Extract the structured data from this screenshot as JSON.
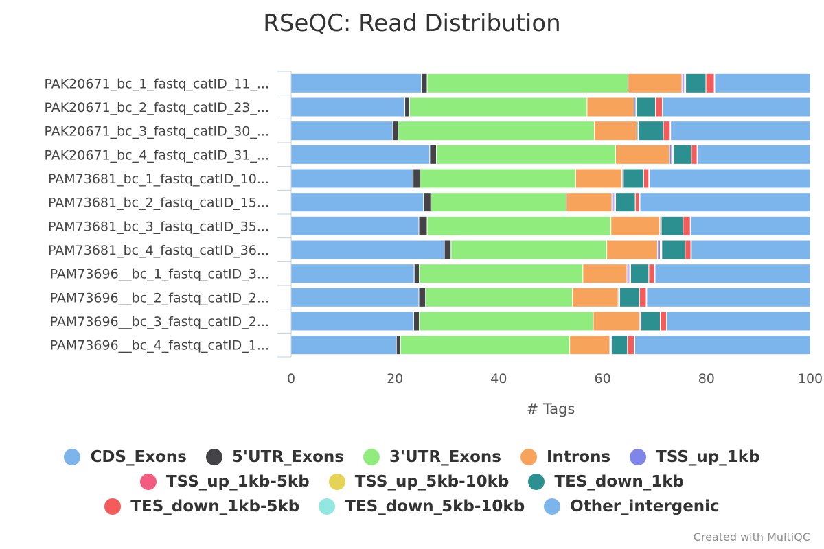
{
  "title": "RSeQC: Read Distribution",
  "credit": "Created with MultiQC",
  "chart_data": {
    "type": "bar",
    "orientation": "horizontal",
    "stacked": true,
    "xlabel": "# Tags",
    "xlim": [
      0,
      100
    ],
    "xticks": [
      "0",
      "20",
      "40",
      "60",
      "80",
      "100"
    ],
    "categories": [
      "PAK20671_bc_1_fastq_catID_11_...",
      "PAK20671_bc_2_fastq_catID_23_...",
      "PAK20671_bc_3_fastq_catID_30_...",
      "PAK20671_bc_4_fastq_catID_31_...",
      "PAM73681_bc_1_fastq_catID_10...",
      "PAM73681_bc_2_fastq_catID_15...",
      "PAM73681_bc_3_fastq_catID_35...",
      "PAM73681_bc_4_fastq_catID_36...",
      "PAM73696__bc_1_fastq_catID_3...",
      "PAM73696__bc_2_fastq_catID_2...",
      "PAM73696__bc_3_fastq_catID_2...",
      "PAM73696__bc_4_fastq_catID_1..."
    ],
    "series": [
      {
        "name": "CDS_Exons",
        "color": "#7cb5ec",
        "values": [
          25.1,
          21.9,
          19.6,
          26.7,
          23.5,
          25.5,
          24.6,
          29.5,
          23.7,
          24.6,
          23.6,
          20.2
        ]
      },
      {
        "name": "5'UTR_Exons",
        "color": "#434348",
        "values": [
          1.1,
          0.9,
          1.0,
          1.3,
          1.3,
          1.4,
          1.6,
          1.3,
          1.0,
          1.3,
          1.1,
          0.8
        ]
      },
      {
        "name": "3'UTR_Exons",
        "color": "#90ed7d",
        "values": [
          38.7,
          34.2,
          37.8,
          34.5,
          30.0,
          26.1,
          35.4,
          30.0,
          31.5,
          28.3,
          33.5,
          32.5
        ]
      },
      {
        "name": "Introns",
        "color": "#f7a35c",
        "values": [
          10.4,
          9.1,
          8.2,
          10.4,
          8.9,
          8.8,
          9.4,
          9.8,
          8.5,
          8.8,
          8.9,
          7.7
        ]
      },
      {
        "name": "TSS_up_1kb",
        "color": "#8085e9",
        "values": [
          0.4,
          0.3,
          0.2,
          0.4,
          0.2,
          0.4,
          0.2,
          0.5,
          0.4,
          0.2,
          0.2,
          0.2
        ]
      },
      {
        "name": "TSS_up_1kb-5kb",
        "color": "#f15c80",
        "values": [
          0.2,
          0.1,
          0.1,
          0.2,
          0.1,
          0.2,
          0.1,
          0.2,
          0.2,
          0.1,
          0.1,
          0.1
        ]
      },
      {
        "name": "TSS_up_5kb-10kb",
        "color": "#e4d354",
        "values": [
          0.1,
          0.0,
          0.0,
          0.1,
          0.0,
          0.1,
          0.0,
          0.1,
          0.1,
          0.0,
          0.0,
          0.0
        ]
      },
      {
        "name": "TES_down_1kb",
        "color": "#2b908f",
        "values": [
          3.9,
          3.7,
          4.8,
          3.5,
          3.9,
          3.8,
          4.2,
          4.5,
          3.5,
          3.8,
          3.7,
          3.1
        ]
      },
      {
        "name": "TES_down_1kb-5kb",
        "color": "#f45b5b",
        "values": [
          1.6,
          1.3,
          1.3,
          1.1,
          1.0,
          0.8,
          1.4,
          1.1,
          1.1,
          1.3,
          1.2,
          1.3
        ]
      },
      {
        "name": "TES_down_5kb-10kb",
        "color": "#91e8e1",
        "values": [
          0.1,
          0.1,
          0.1,
          0.1,
          0.1,
          0.1,
          0.1,
          0.1,
          0.1,
          0.1,
          0.1,
          0.1
        ]
      },
      {
        "name": "Other_intergenic",
        "color": "#7cb5ec",
        "values": [
          18.4,
          28.4,
          26.9,
          21.7,
          31.0,
          32.8,
          23.0,
          22.9,
          29.9,
          31.5,
          27.6,
          33.7
        ]
      }
    ],
    "legend_position": "bottom",
    "grid": false
  }
}
